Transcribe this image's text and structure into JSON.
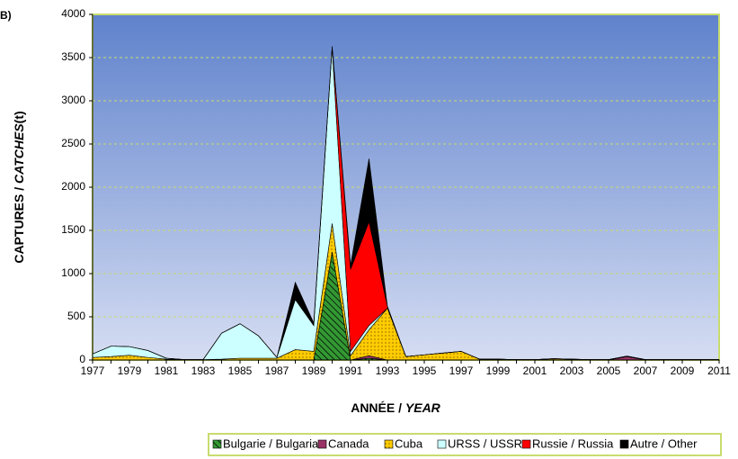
{
  "chart_data": {
    "type": "stacked-area",
    "panel_label": "B)",
    "ylabel": [
      "CAPTURES / ",
      "CATCHES",
      "(t)"
    ],
    "xlabel": [
      "ANNÉE / ",
      "YEAR"
    ],
    "categories": [
      "1977",
      null,
      "1979",
      null,
      "1981",
      null,
      "1983",
      null,
      "1985",
      null,
      "1987",
      null,
      "1989",
      null,
      "1991",
      null,
      "1993",
      null,
      "1995",
      null,
      "1997",
      null,
      "1999",
      null,
      "2001",
      null,
      "2003",
      null,
      "2005",
      null,
      "2007",
      null,
      "2009",
      null,
      "2011"
    ],
    "ylim": [
      0,
      4000
    ],
    "yticks": [
      0,
      500,
      1000,
      1500,
      2000,
      2500,
      3000,
      3500,
      4000
    ],
    "grid": true,
    "legend": "bottom",
    "series": [
      {
        "name": "Bulgarie / Bulgaria",
        "color": "#339933",
        "values": [
          0,
          0,
          0,
          0,
          0,
          0,
          0,
          0,
          0,
          0,
          0,
          0,
          0,
          1250,
          0,
          20,
          0,
          0,
          0,
          0,
          0,
          0,
          0,
          0,
          0,
          0,
          0,
          0,
          0,
          0,
          0,
          0,
          0,
          0,
          0
        ]
      },
      {
        "name": "Canada",
        "color": "#993366",
        "values": [
          0,
          0,
          0,
          0,
          0,
          0,
          0,
          0,
          0,
          0,
          0,
          0,
          0,
          0,
          0,
          30,
          0,
          0,
          0,
          0,
          0,
          0,
          0,
          0,
          0,
          5,
          0,
          0,
          0,
          40,
          0,
          0,
          0,
          0,
          0
        ]
      },
      {
        "name": "Cuba",
        "color": "#ffcc00",
        "values": [
          30,
          40,
          55,
          30,
          10,
          5,
          5,
          10,
          20,
          20,
          20,
          120,
          100,
          330,
          50,
          300,
          600,
          40,
          60,
          80,
          100,
          10,
          10,
          5,
          5,
          10,
          10,
          5,
          5,
          5,
          5,
          5,
          5,
          5,
          5
        ]
      },
      {
        "name": "URSS / USSR",
        "color": "#ccffff",
        "values": [
          40,
          120,
          100,
          80,
          10,
          0,
          0,
          300,
          400,
          260,
          10,
          580,
          300,
          2040,
          50,
          50,
          0,
          0,
          0,
          0,
          0,
          0,
          0,
          0,
          0,
          0,
          0,
          0,
          0,
          0,
          0,
          0,
          0,
          0,
          0
        ]
      },
      {
        "name": "Russie / Russia",
        "color": "#ff0000",
        "values": [
          0,
          0,
          0,
          0,
          0,
          0,
          0,
          0,
          0,
          0,
          0,
          0,
          0,
          0,
          950,
          1200,
          20,
          0,
          0,
          0,
          0,
          0,
          0,
          0,
          0,
          0,
          0,
          0,
          0,
          0,
          0,
          0,
          0,
          0,
          0
        ]
      },
      {
        "name": "Autre / Other",
        "color": "#000000",
        "values": [
          0,
          0,
          0,
          0,
          0,
          0,
          0,
          0,
          0,
          0,
          0,
          200,
          30,
          10,
          50,
          730,
          0,
          0,
          0,
          0,
          0,
          0,
          0,
          0,
          0,
          0,
          0,
          0,
          0,
          0,
          0,
          0,
          0,
          0,
          0
        ]
      }
    ]
  }
}
